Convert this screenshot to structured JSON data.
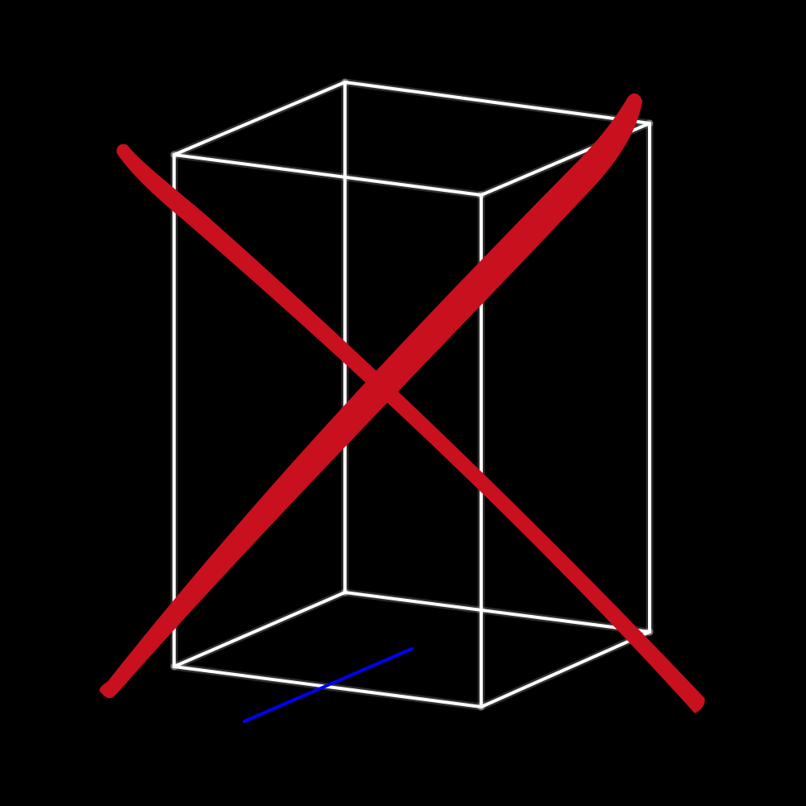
{
  "scene": {
    "background_color": "#000000",
    "subject": "wireframe-rectangular-box",
    "box_edge_color": "#ffffff",
    "axis_line_color": "#0000ff",
    "cross_mark_color": "#c8101e",
    "cross_mark_icon": "red-x-cross-out-icon"
  }
}
